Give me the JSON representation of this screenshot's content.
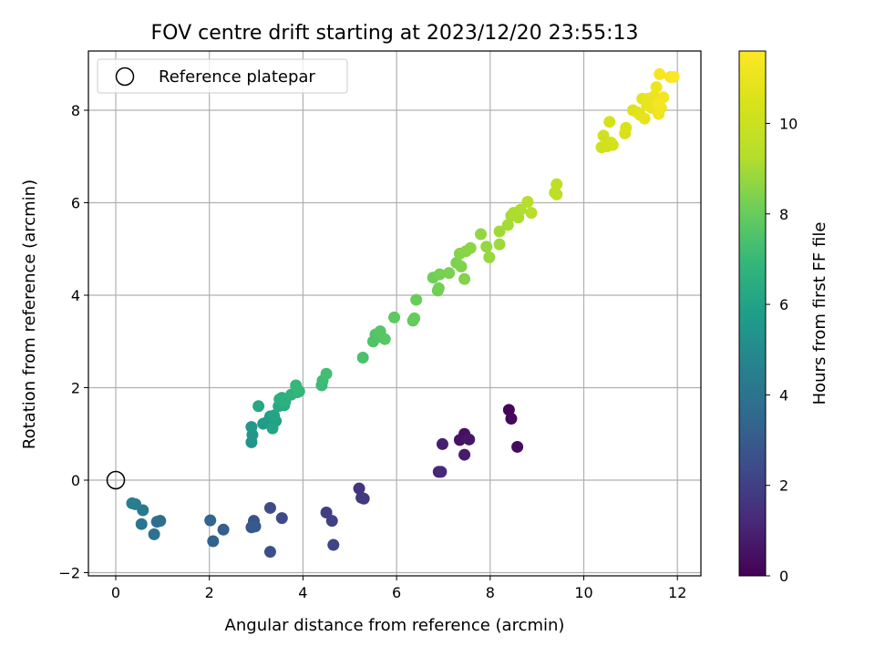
{
  "chart_data": {
    "type": "scatter",
    "title": "FOV centre drift starting at 2023/12/20 23:55:13",
    "xlabel": "Angular distance from reference (arcmin)",
    "ylabel": "Rotation from reference (arcmin)",
    "xlim": [
      -0.6,
      12.5
    ],
    "ylim": [
      -2.1,
      9.3
    ],
    "xticks": [
      0,
      2,
      4,
      6,
      8,
      10,
      12
    ],
    "yticks": [
      -2,
      0,
      2,
      4,
      6,
      8
    ],
    "grid": true,
    "legend": {
      "placement": "top-left",
      "entries": [
        "Reference platepar"
      ]
    },
    "reference_point": {
      "x": 0,
      "y": 0
    },
    "colorbar": {
      "label": "Hours from first FF file",
      "colormap": "viridis",
      "range": [
        0,
        11.6
      ],
      "ticks": [
        0,
        2,
        4,
        6,
        8,
        10
      ]
    },
    "points": [
      [
        8.4,
        1.52,
        0.1
      ],
      [
        8.45,
        1.33,
        0.2
      ],
      [
        8.58,
        0.72,
        0.3
      ],
      [
        7.45,
        1.0,
        0.45
      ],
      [
        7.35,
        0.87,
        0.55
      ],
      [
        7.55,
        0.88,
        0.65
      ],
      [
        7.45,
        0.55,
        0.75
      ],
      [
        6.98,
        0.78,
        0.9
      ],
      [
        6.9,
        0.18,
        1.05
      ],
      [
        6.95,
        0.18,
        1.2
      ],
      [
        5.2,
        -0.18,
        1.6
      ],
      [
        5.25,
        -0.38,
        1.7
      ],
      [
        5.3,
        -0.4,
        1.8
      ],
      [
        4.5,
        -0.7,
        1.95
      ],
      [
        4.62,
        -0.88,
        2.05
      ],
      [
        4.65,
        -1.4,
        2.15
      ],
      [
        3.55,
        -0.82,
        2.35
      ],
      [
        3.3,
        -0.6,
        2.45
      ],
      [
        3.3,
        -1.55,
        2.55
      ],
      [
        2.95,
        -0.88,
        2.75
      ],
      [
        2.9,
        -1.02,
        2.85
      ],
      [
        2.98,
        -1.0,
        2.95
      ],
      [
        2.3,
        -1.07,
        3.15
      ],
      [
        2.08,
        -1.32,
        3.3
      ],
      [
        2.02,
        -0.87,
        3.4
      ],
      [
        0.95,
        -0.88,
        3.7
      ],
      [
        0.88,
        -0.9,
        3.8
      ],
      [
        0.82,
        -1.17,
        3.95
      ],
      [
        0.55,
        -0.95,
        4.1
      ],
      [
        0.58,
        -0.65,
        4.2
      ],
      [
        0.42,
        -0.52,
        4.35
      ],
      [
        0.35,
        -0.5,
        4.45
      ],
      [
        2.9,
        0.82,
        5.4
      ],
      [
        2.92,
        0.98,
        5.5
      ],
      [
        2.9,
        1.15,
        5.6
      ],
      [
        3.15,
        1.22,
        5.7
      ],
      [
        3.22,
        1.25,
        5.75
      ],
      [
        3.3,
        1.38,
        5.85
      ],
      [
        3.42,
        1.28,
        5.95
      ],
      [
        3.35,
        1.12,
        6.05
      ],
      [
        3.38,
        1.4,
        6.1
      ],
      [
        3.05,
        1.6,
        6.2
      ],
      [
        3.48,
        1.6,
        6.3
      ],
      [
        3.6,
        1.62,
        6.4
      ],
      [
        3.5,
        1.75,
        6.5
      ],
      [
        3.55,
        1.78,
        6.55
      ],
      [
        3.62,
        1.7,
        6.6
      ],
      [
        3.75,
        1.85,
        6.7
      ],
      [
        3.88,
        1.9,
        6.75
      ],
      [
        3.92,
        1.92,
        6.85
      ],
      [
        3.85,
        2.05,
        6.95
      ],
      [
        4.4,
        2.05,
        7.1
      ],
      [
        4.42,
        2.15,
        7.15
      ],
      [
        4.5,
        2.3,
        7.25
      ],
      [
        5.28,
        2.65,
        7.4
      ],
      [
        5.5,
        3.0,
        7.5
      ],
      [
        5.55,
        3.15,
        7.55
      ],
      [
        5.62,
        3.1,
        7.6
      ],
      [
        5.65,
        3.22,
        7.65
      ],
      [
        5.75,
        3.05,
        7.7
      ],
      [
        5.95,
        3.52,
        7.8
      ],
      [
        6.35,
        3.45,
        7.9
      ],
      [
        6.38,
        3.5,
        7.95
      ],
      [
        6.42,
        3.9,
        8.0
      ],
      [
        6.78,
        4.38,
        8.1
      ],
      [
        6.88,
        4.1,
        8.15
      ],
      [
        6.9,
        4.15,
        8.2
      ],
      [
        6.92,
        4.45,
        8.25
      ],
      [
        7.12,
        4.48,
        8.3
      ],
      [
        7.28,
        4.7,
        8.35
      ],
      [
        7.38,
        4.62,
        8.4
      ],
      [
        7.45,
        4.35,
        8.45
      ],
      [
        7.35,
        4.9,
        8.5
      ],
      [
        7.48,
        4.95,
        8.55
      ],
      [
        7.58,
        5.02,
        8.6
      ],
      [
        7.8,
        5.32,
        8.7
      ],
      [
        7.92,
        5.05,
        8.75
      ],
      [
        7.98,
        4.82,
        8.8
      ],
      [
        8.2,
        5.1,
        8.9
      ],
      [
        8.2,
        5.38,
        8.95
      ],
      [
        8.38,
        5.52,
        9.0
      ],
      [
        8.45,
        5.72,
        9.05
      ],
      [
        8.5,
        5.78,
        9.1
      ],
      [
        8.6,
        5.68,
        9.15
      ],
      [
        8.65,
        5.85,
        9.2
      ],
      [
        8.8,
        6.02,
        9.3
      ],
      [
        8.88,
        5.78,
        9.35
      ],
      [
        9.38,
        6.22,
        9.5
      ],
      [
        9.42,
        6.18,
        9.55
      ],
      [
        9.42,
        6.4,
        9.6
      ],
      [
        10.38,
        7.2,
        10.1
      ],
      [
        10.42,
        7.45,
        10.15
      ],
      [
        10.5,
        7.22,
        10.2
      ],
      [
        10.58,
        7.3,
        10.25
      ],
      [
        10.62,
        7.25,
        10.3
      ],
      [
        10.55,
        7.75,
        10.35
      ],
      [
        10.88,
        7.5,
        10.45
      ],
      [
        10.9,
        7.62,
        10.5
      ],
      [
        11.05,
        8.0,
        10.6
      ],
      [
        11.15,
        7.95,
        10.7
      ],
      [
        11.2,
        7.9,
        10.75
      ],
      [
        11.25,
        8.25,
        10.8
      ],
      [
        11.3,
        7.82,
        10.85
      ],
      [
        11.35,
        8.1,
        10.9
      ],
      [
        11.38,
        8.25,
        10.95
      ],
      [
        11.45,
        8.05,
        11.0
      ],
      [
        11.5,
        8.3,
        11.05
      ],
      [
        11.55,
        8.5,
        11.1
      ],
      [
        11.6,
        7.92,
        11.15
      ],
      [
        11.65,
        8.05,
        11.2
      ],
      [
        11.7,
        8.28,
        11.25
      ],
      [
        11.62,
        8.78,
        11.35
      ],
      [
        11.85,
        8.72,
        11.45
      ],
      [
        11.92,
        8.72,
        11.55
      ],
      [
        11.6,
        8.15,
        11.3
      ]
    ]
  }
}
